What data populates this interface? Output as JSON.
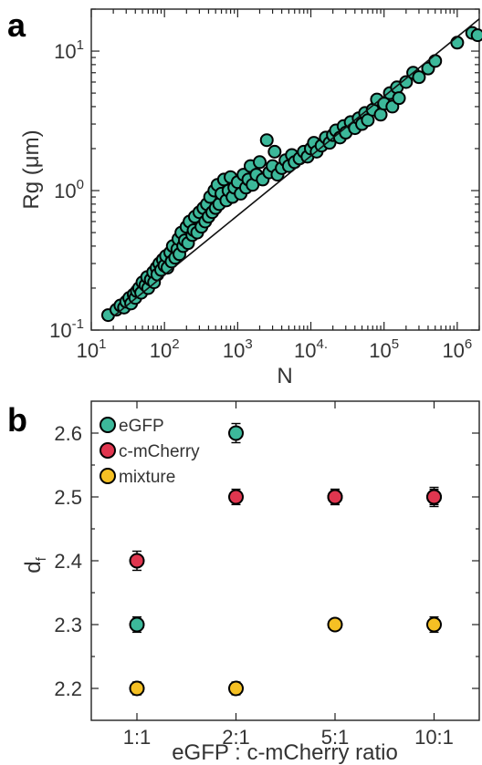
{
  "chart_data": [
    {
      "panel": "a",
      "type": "scatter",
      "xlabel": "N",
      "ylabel": "Rg (μm)",
      "xscale": "log",
      "yscale": "log",
      "xlim": [
        10,
        2000000
      ],
      "ylim": [
        0.1,
        20
      ],
      "x_tick_labels": [
        "10^1",
        "10^2",
        "10^3",
        "10^4.",
        "10^5",
        "10^6"
      ],
      "y_tick_labels": [
        "10^-1",
        "10^0",
        "10^1"
      ],
      "marker_color": "#3cb89a",
      "fit_line": {
        "x": [
          20,
          2000000
        ],
        "y": [
          0.125,
          17
        ]
      },
      "points": [
        [
          17,
          0.128
        ],
        [
          22,
          0.14
        ],
        [
          25,
          0.15
        ],
        [
          28,
          0.145
        ],
        [
          30,
          0.16
        ],
        [
          33,
          0.17
        ],
        [
          35,
          0.155
        ],
        [
          38,
          0.18
        ],
        [
          40,
          0.17
        ],
        [
          42,
          0.19
        ],
        [
          45,
          0.2
        ],
        [
          48,
          0.185
        ],
        [
          50,
          0.22
        ],
        [
          55,
          0.21
        ],
        [
          58,
          0.24
        ],
        [
          60,
          0.2
        ],
        [
          65,
          0.23
        ],
        [
          70,
          0.26
        ],
        [
          72,
          0.22
        ],
        [
          78,
          0.28
        ],
        [
          80,
          0.25
        ],
        [
          85,
          0.3
        ],
        [
          90,
          0.27
        ],
        [
          95,
          0.32
        ],
        [
          100,
          0.29
        ],
        [
          105,
          0.34
        ],
        [
          110,
          0.28
        ],
        [
          120,
          0.36
        ],
        [
          125,
          0.31
        ],
        [
          130,
          0.4
        ],
        [
          140,
          0.33
        ],
        [
          150,
          0.38
        ],
        [
          155,
          0.45
        ],
        [
          160,
          0.35
        ],
        [
          170,
          0.5
        ],
        [
          180,
          0.4
        ],
        [
          190,
          0.44
        ],
        [
          200,
          0.55
        ],
        [
          210,
          0.42
        ],
        [
          220,
          0.6
        ],
        [
          240,
          0.48
        ],
        [
          250,
          0.52
        ],
        [
          260,
          0.65
        ],
        [
          280,
          0.5
        ],
        [
          300,
          0.7
        ],
        [
          320,
          0.55
        ],
        [
          340,
          0.75
        ],
        [
          360,
          0.6
        ],
        [
          380,
          0.8
        ],
        [
          400,
          0.65
        ],
        [
          420,
          0.9
        ],
        [
          450,
          0.7
        ],
        [
          480,
          1.0
        ],
        [
          500,
          0.75
        ],
        [
          530,
          1.1
        ],
        [
          560,
          0.8
        ],
        [
          600,
          0.95
        ],
        [
          650,
          1.2
        ],
        [
          700,
          0.85
        ],
        [
          750,
          1.0
        ],
        [
          800,
          1.25
        ],
        [
          850,
          0.9
        ],
        [
          900,
          1.05
        ],
        [
          1000,
          1.15
        ],
        [
          1100,
          0.95
        ],
        [
          1200,
          1.3
        ],
        [
          1300,
          1.05
        ],
        [
          1400,
          1.2
        ],
        [
          1500,
          1.5
        ],
        [
          1600,
          1.1
        ],
        [
          1800,
          1.3
        ],
        [
          2000,
          1.6
        ],
        [
          2200,
          1.2
        ],
        [
          2500,
          2.3
        ],
        [
          2700,
          1.35
        ],
        [
          3000,
          1.5
        ],
        [
          3200,
          1.9
        ],
        [
          3500,
          1.3
        ],
        [
          4000,
          1.45
        ],
        [
          4500,
          1.65
        ],
        [
          5000,
          1.5
        ],
        [
          5500,
          1.8
        ],
        [
          6000,
          1.6
        ],
        [
          7000,
          1.7
        ],
        [
          8000,
          1.9
        ],
        [
          9000,
          1.75
        ],
        [
          10000,
          2.0
        ],
        [
          11000,
          2.2
        ],
        [
          12000,
          1.9
        ],
        [
          14000,
          2.1
        ],
        [
          16000,
          2.4
        ],
        [
          18000,
          2.2
        ],
        [
          20000,
          2.5
        ],
        [
          22000,
          2.7
        ],
        [
          25000,
          2.4
        ],
        [
          28000,
          2.9
        ],
        [
          30000,
          2.6
        ],
        [
          35000,
          3.1
        ],
        [
          40000,
          2.8
        ],
        [
          45000,
          3.3
        ],
        [
          50000,
          3.0
        ],
        [
          55000,
          3.6
        ],
        [
          60000,
          3.2
        ],
        [
          70000,
          3.8
        ],
        [
          80000,
          4.5
        ],
        [
          90000,
          3.5
        ],
        [
          100000,
          4.2
        ],
        [
          120000,
          5.0
        ],
        [
          130000,
          4.0
        ],
        [
          150000,
          5.5
        ],
        [
          160000,
          4.6
        ],
        [
          200000,
          6.0
        ],
        [
          250000,
          7.0
        ],
        [
          300000,
          6.5
        ],
        [
          400000,
          7.5
        ],
        [
          500000,
          8.5
        ],
        [
          1000000,
          11.5
        ],
        [
          1600000,
          13.5
        ],
        [
          1900000,
          13.0
        ]
      ]
    },
    {
      "panel": "b",
      "type": "scatter",
      "xlabel": "eGFP : c-mCherry ratio",
      "ylabel": "d_f",
      "categories": [
        "1:1",
        "2:1",
        "5:1",
        "10:1"
      ],
      "ylim": [
        2.15,
        2.65
      ],
      "y_ticks": [
        2.2,
        2.3,
        2.4,
        2.5,
        2.6
      ],
      "legend_position": "top-left",
      "series": [
        {
          "name": "eGFP",
          "color": "#3cb89a",
          "values": [
            2.3,
            2.6,
            2.5,
            2.5
          ],
          "errors": [
            0.012,
            0.015,
            0.012,
            0.012
          ]
        },
        {
          "name": "c-mCherry",
          "color": "#e0364f",
          "values": [
            2.4,
            2.5,
            2.5,
            2.5
          ],
          "errors": [
            0.015,
            0.012,
            0.012,
            0.015
          ]
        },
        {
          "name": "mixture",
          "color": "#f5c024",
          "values": [
            2.2,
            2.2,
            2.3,
            2.3
          ],
          "errors": [
            0.01,
            0.01,
            0.008,
            0.012
          ]
        }
      ]
    }
  ],
  "figure": {
    "panel_a_letter": "a",
    "panel_b_letter": "b"
  }
}
